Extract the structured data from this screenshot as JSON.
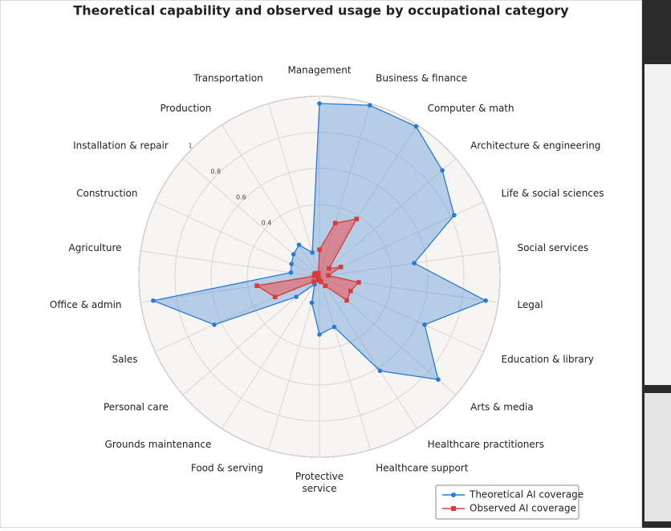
{
  "chart_data": {
    "type": "radar",
    "title": "Theoretical capability and observed usage by occupational category",
    "categories": [
      "Management",
      "Business & finance",
      "Computer & math",
      "Architecture & engineering",
      "Life & social sciences",
      "Social services",
      "Legal",
      "Education & library",
      "Arts & media",
      "Healthcare practitioners",
      "Healthcare support",
      "Protective\nservice",
      "Food & serving",
      "Grounds maintenance",
      "Personal care",
      "Sales",
      "Office & admin",
      "Agriculture",
      "Construction",
      "Installation & repair",
      "Production",
      "Transportation"
    ],
    "series": [
      {
        "name": "Theoretical AI coverage",
        "color": "#2a7ad5",
        "values": [
          0.96,
          0.99,
          0.99,
          0.9,
          0.82,
          0.53,
          0.93,
          0.64,
          0.87,
          0.62,
          0.29,
          0.32,
          0.15,
          0.05,
          0.17,
          0.64,
          0.93,
          0.16,
          0.17,
          0.19,
          0.21,
          0.14
        ]
      },
      {
        "name": "Observed AI coverage",
        "color": "#d93a3a",
        "values": [
          0.15,
          0.31,
          0.38,
          0.07,
          0.13,
          0.05,
          0.22,
          0.19,
          0.2,
          0.06,
          0.03,
          0.02,
          0.02,
          0.01,
          0.04,
          0.27,
          0.35,
          0.03,
          0.03,
          0.03,
          0.02,
          0.02
        ]
      }
    ],
    "ylim": [
      0,
      1.0
    ],
    "yticks": [
      0.4,
      0.6,
      0.8,
      1.0
    ],
    "grid": true,
    "legend": "lower right"
  }
}
